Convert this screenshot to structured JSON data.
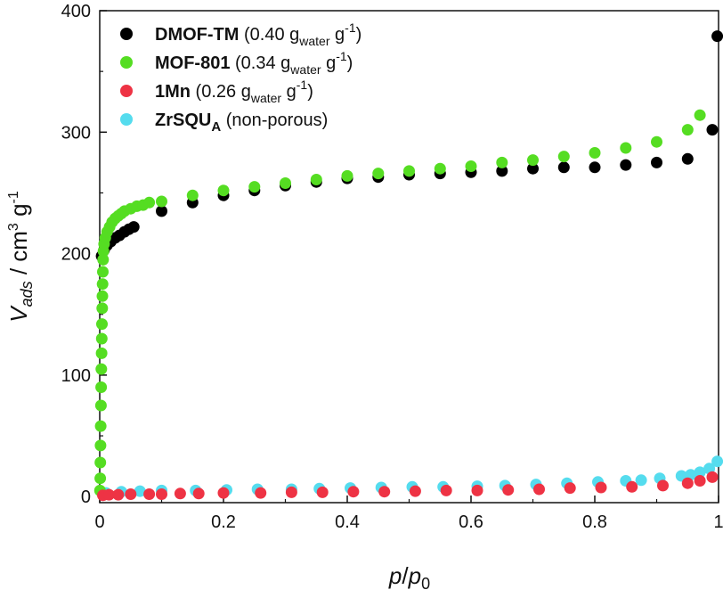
{
  "chart_data": {
    "type": "scatter",
    "title": "",
    "xlabel": {
      "main": "p",
      "slash": "/",
      "sub_main": "p",
      "sub": "0"
    },
    "ylabel": {
      "main": "V",
      "sub": "ads",
      "unit_prefix": " / cm",
      "sup": "3",
      "unit_suffix": " g",
      "sup2": "-1"
    },
    "xlim": [
      0,
      1
    ],
    "ylim": [
      -5,
      400
    ],
    "x_ticks": [
      0,
      0.2,
      0.4,
      0.6,
      0.8,
      1
    ],
    "x_tick_labels": [
      "0",
      "0.2",
      "0.4",
      "0.6",
      "0.8",
      "1"
    ],
    "y_ticks": [
      0,
      100,
      200,
      300,
      400
    ],
    "y_tick_labels": [
      "0",
      "100",
      "200",
      "300",
      "400"
    ],
    "grid": false,
    "legend_position": "top-left",
    "series": [
      {
        "name": "DMOF-TM",
        "legend": {
          "bold": "DMOF-TM",
          "rest_prefix": " (0.40 g",
          "sub": "water",
          "rest_mid": " g",
          "sup": "-1",
          "rest_suffix": ")"
        },
        "color": "#000000",
        "points": [
          [
            0.003,
            198
          ],
          [
            0.007,
            203
          ],
          [
            0.012,
            207
          ],
          [
            0.018,
            210
          ],
          [
            0.025,
            213
          ],
          [
            0.032,
            215
          ],
          [
            0.04,
            218
          ],
          [
            0.047,
            220
          ],
          [
            0.055,
            222
          ],
          [
            0.1,
            235
          ],
          [
            0.15,
            242
          ],
          [
            0.2,
            248
          ],
          [
            0.25,
            252
          ],
          [
            0.3,
            256
          ],
          [
            0.35,
            259
          ],
          [
            0.4,
            262
          ],
          [
            0.45,
            263
          ],
          [
            0.5,
            265
          ],
          [
            0.55,
            266
          ],
          [
            0.6,
            267
          ],
          [
            0.65,
            268
          ],
          [
            0.7,
            270
          ],
          [
            0.75,
            271
          ],
          [
            0.8,
            271
          ],
          [
            0.85,
            273
          ],
          [
            0.9,
            275
          ],
          [
            0.95,
            278
          ],
          [
            0.99,
            302
          ],
          [
            0.998,
            379
          ]
        ]
      },
      {
        "name": "MOF-801",
        "legend": {
          "bold": "MOF-801",
          "rest_prefix": " (0.34 g",
          "sub": "water",
          "rest_mid": " g",
          "sup": "-1",
          "rest_suffix": ")"
        },
        "color": "#55dd22",
        "points": [
          [
            0.0005,
            5
          ],
          [
            0.0008,
            15
          ],
          [
            0.001,
            28
          ],
          [
            0.0013,
            42
          ],
          [
            0.0016,
            58
          ],
          [
            0.002,
            75
          ],
          [
            0.0023,
            90
          ],
          [
            0.0026,
            105
          ],
          [
            0.003,
            118
          ],
          [
            0.0033,
            130
          ],
          [
            0.0036,
            142
          ],
          [
            0.004,
            155
          ],
          [
            0.0043,
            165
          ],
          [
            0.0046,
            175
          ],
          [
            0.005,
            185
          ],
          [
            0.0055,
            195
          ],
          [
            0.006,
            202
          ],
          [
            0.007,
            208
          ],
          [
            0.009,
            213
          ],
          [
            0.012,
            218
          ],
          [
            0.016,
            222
          ],
          [
            0.02,
            226
          ],
          [
            0.025,
            229
          ],
          [
            0.03,
            231
          ],
          [
            0.035,
            233
          ],
          [
            0.04,
            235
          ],
          [
            0.05,
            237
          ],
          [
            0.06,
            239
          ],
          [
            0.07,
            240
          ],
          [
            0.08,
            242
          ],
          [
            0.1,
            243
          ],
          [
            0.15,
            248
          ],
          [
            0.2,
            252
          ],
          [
            0.25,
            255
          ],
          [
            0.3,
            258
          ],
          [
            0.35,
            261
          ],
          [
            0.4,
            264
          ],
          [
            0.45,
            266
          ],
          [
            0.5,
            268
          ],
          [
            0.55,
            270
          ],
          [
            0.6,
            272
          ],
          [
            0.65,
            275
          ],
          [
            0.7,
            277
          ],
          [
            0.75,
            280
          ],
          [
            0.8,
            283
          ],
          [
            0.85,
            287
          ],
          [
            0.9,
            292
          ],
          [
            0.95,
            302
          ],
          [
            0.97,
            314
          ]
        ]
      },
      {
        "name": "1Mn",
        "legend": {
          "bold": "1Mn",
          "rest_prefix": " (0.26 g",
          "sub": "water",
          "rest_mid": " g",
          "sup": "-1",
          "rest_suffix": ")"
        },
        "color": "#ee3344",
        "points": [
          [
            0.005,
            1
          ],
          [
            0.015,
            1.5
          ],
          [
            0.03,
            1.5
          ],
          [
            0.05,
            2
          ],
          [
            0.08,
            2
          ],
          [
            0.1,
            2
          ],
          [
            0.13,
            2.5
          ],
          [
            0.16,
            2.5
          ],
          [
            0.2,
            3
          ],
          [
            0.26,
            3
          ],
          [
            0.31,
            3.5
          ],
          [
            0.36,
            3.5
          ],
          [
            0.41,
            4
          ],
          [
            0.46,
            4
          ],
          [
            0.51,
            4.5
          ],
          [
            0.56,
            5
          ],
          [
            0.61,
            5
          ],
          [
            0.66,
            5.5
          ],
          [
            0.71,
            6
          ],
          [
            0.76,
            7
          ],
          [
            0.81,
            7.5
          ],
          [
            0.86,
            8
          ],
          [
            0.91,
            9
          ],
          [
            0.95,
            11
          ],
          [
            0.97,
            13
          ],
          [
            0.99,
            16
          ]
        ]
      },
      {
        "name": "ZrSQU",
        "legend": {
          "bold": "ZrSQU",
          "bold_sub": "A",
          "rest_prefix": " (non-porous)",
          "sub": "",
          "rest_mid": "",
          "sup": "",
          "rest_suffix": ""
        },
        "color": "#55dcee",
        "points": [
          [
            0.01,
            3
          ],
          [
            0.035,
            4
          ],
          [
            0.065,
            4.5
          ],
          [
            0.1,
            5
          ],
          [
            0.155,
            5
          ],
          [
            0.205,
            5.5
          ],
          [
            0.255,
            6
          ],
          [
            0.31,
            6
          ],
          [
            0.355,
            6.5
          ],
          [
            0.405,
            7
          ],
          [
            0.455,
            7.5
          ],
          [
            0.505,
            8
          ],
          [
            0.555,
            8
          ],
          [
            0.61,
            8.5
          ],
          [
            0.655,
            9
          ],
          [
            0.705,
            10
          ],
          [
            0.755,
            11
          ],
          [
            0.805,
            12
          ],
          [
            0.85,
            13
          ],
          [
            0.875,
            13.5
          ],
          [
            0.905,
            15
          ],
          [
            0.94,
            17
          ],
          [
            0.955,
            18
          ],
          [
            0.97,
            20
          ],
          [
            0.985,
            23
          ],
          [
            0.998,
            29
          ]
        ]
      }
    ]
  }
}
